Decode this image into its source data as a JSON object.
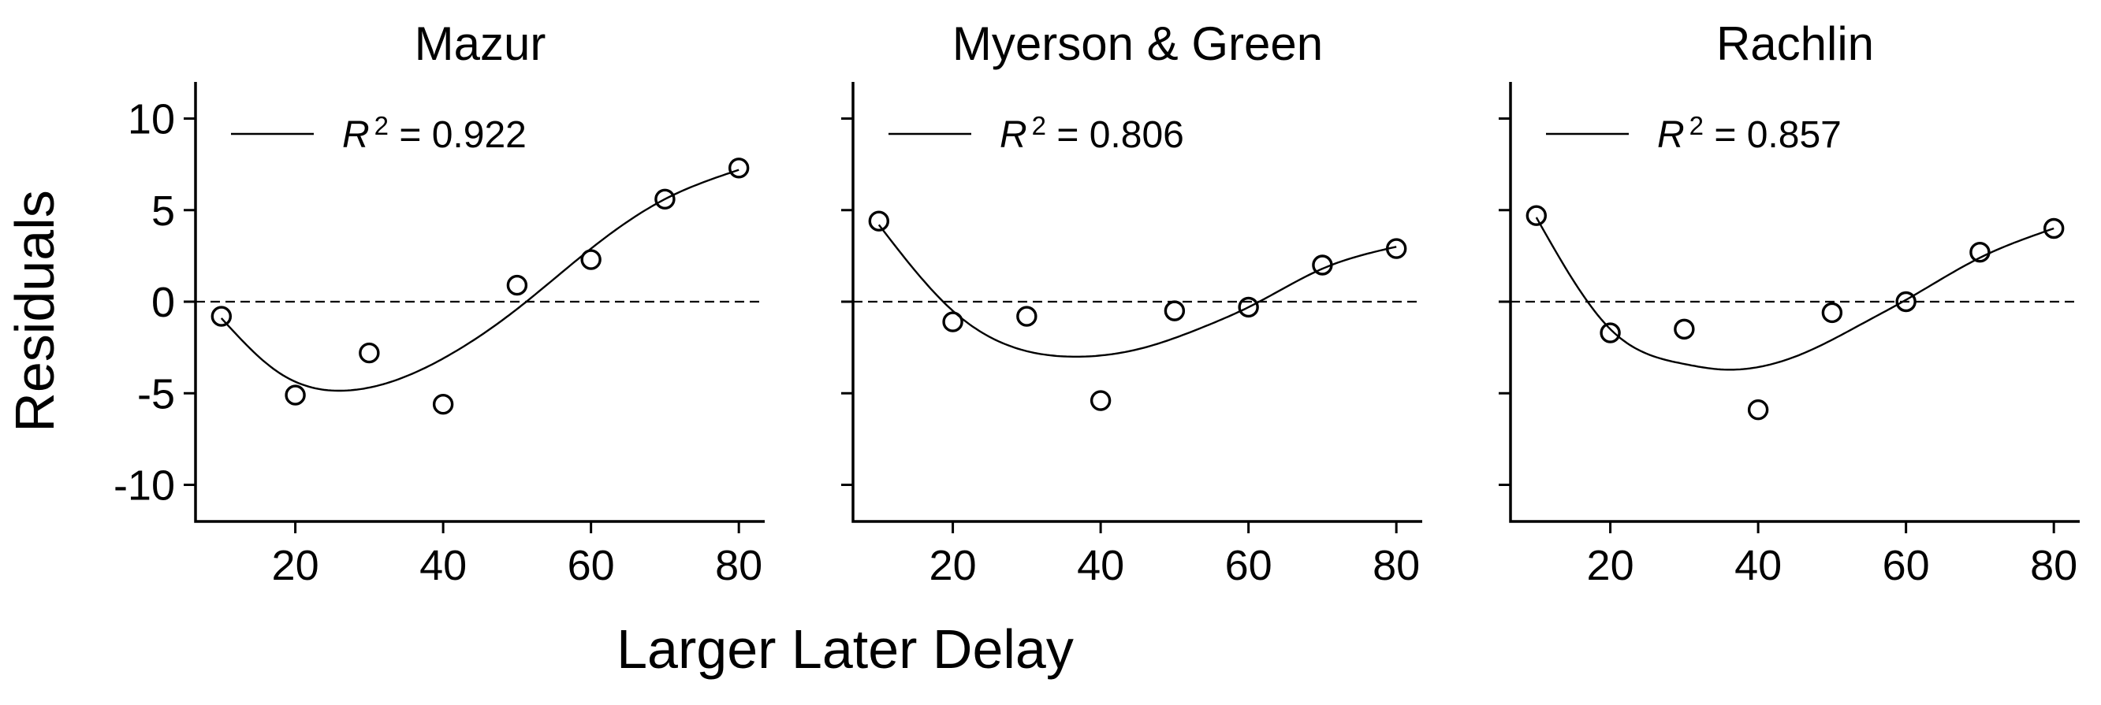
{
  "chart_data": [
    {
      "type": "scatter",
      "title": "Mazur",
      "legend": {
        "line_label": "R",
        "superscript": "2",
        "value_text": " = 0.922",
        "placement": "top-left"
      },
      "x": [
        10,
        20,
        30,
        40,
        50,
        60,
        70,
        80
      ],
      "y": [
        -0.8,
        -5.1,
        -2.8,
        -5.6,
        0.9,
        2.3,
        5.6,
        7.3
      ],
      "fit_curve": {
        "x": [
          10,
          17.5,
          27,
          40,
          50,
          60,
          70,
          80
        ],
        "y": [
          -0.9,
          -3.8,
          -4.85,
          -3.1,
          -0.4,
          2.9,
          5.6,
          7.2
        ]
      },
      "reference_line_y": 0,
      "xlim": [
        6.5,
        83.5
      ],
      "ylim": [
        -12,
        12
      ],
      "xticks": [
        20,
        40,
        60,
        80
      ],
      "yticks": [
        10,
        5,
        0,
        -5,
        -10
      ]
    },
    {
      "type": "scatter",
      "title": "Myerson & Green",
      "legend": {
        "line_label": "R",
        "superscript": "2",
        "value_text": " = 0.806",
        "placement": "top-left"
      },
      "x": [
        10,
        20,
        30,
        40,
        50,
        60,
        70,
        80
      ],
      "y": [
        4.4,
        -1.1,
        -0.8,
        -5.4,
        -0.5,
        -0.3,
        2.0,
        2.9
      ],
      "fit_curve": {
        "x": [
          10,
          20,
          30,
          36,
          45,
          55,
          60,
          70,
          80
        ],
        "y": [
          4.2,
          -0.5,
          -2.7,
          -3.0,
          -2.6,
          -1.2,
          -0.3,
          1.8,
          3.0
        ]
      },
      "reference_line_y": 0,
      "xlim": [
        6.5,
        83.5
      ],
      "ylim": [
        -12,
        12
      ],
      "xticks": [
        20,
        40,
        60,
        80
      ],
      "yticks": [
        10,
        5,
        0,
        -5,
        -10
      ]
    },
    {
      "type": "scatter",
      "title": "Rachlin",
      "legend": {
        "line_label": "R",
        "superscript": "2",
        "value_text": " = 0.857",
        "placement": "top-left"
      },
      "x": [
        10,
        20,
        30,
        40,
        50,
        60,
        70,
        80
      ],
      "y": [
        4.7,
        -1.7,
        -1.5,
        -5.9,
        -0.6,
        0.0,
        2.7,
        4.0
      ],
      "fit_curve": {
        "x": [
          10,
          20,
          30,
          35,
          45,
          55,
          60,
          70,
          80
        ],
        "y": [
          4.6,
          -1.5,
          -3.4,
          -3.7,
          -3.0,
          -1.0,
          0.1,
          2.4,
          4.0
        ]
      },
      "reference_line_y": 0,
      "xlim": [
        6.5,
        83.5
      ],
      "ylim": [
        -12,
        12
      ],
      "xticks": [
        20,
        40,
        60,
        80
      ],
      "yticks": [
        10,
        5,
        0,
        -5,
        -10
      ]
    }
  ],
  "labels": {
    "xlabel": "Larger Later Delay",
    "ylabel": "Residuals"
  }
}
